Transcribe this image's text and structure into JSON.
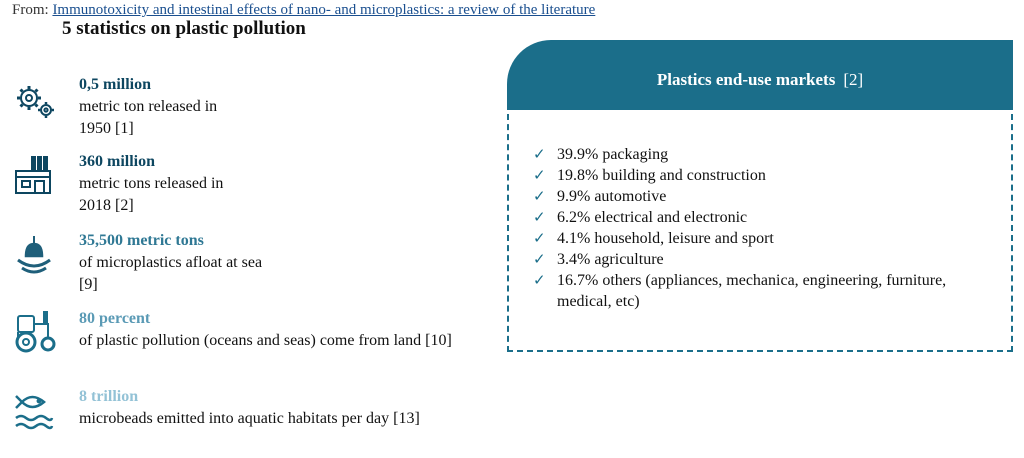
{
  "header": {
    "from_label": "From:",
    "article_link": "Immunotoxicity and intestinal effects of nano- and microplastics: a review of the literature"
  },
  "title": "5 statistics on plastic pollution",
  "stats": [
    {
      "icon": "gears-icon",
      "value": "0,5 million",
      "desc_lines": [
        "metric ton released in",
        "1950 [1]"
      ],
      "color": "#0d4660"
    },
    {
      "icon": "factory-icon",
      "value": "360 million",
      "desc_lines": [
        "metric tons released in",
        "2018 [2]"
      ],
      "color": "#0d4660"
    },
    {
      "icon": "buoy-icon",
      "value": "35,500 metric tons",
      "desc_lines": [
        "of microplastics afloat at sea",
        "[9]"
      ],
      "color": "#2f7894"
    },
    {
      "icon": "tractor-icon",
      "value": "80 percent",
      "desc_lines": [
        "of plastic pollution (oceans and seas) come from land  [10]"
      ],
      "color": "#5a9ab5"
    },
    {
      "icon": "fish-waves-icon",
      "value": "8 trillion",
      "desc_lines": [
        "microbeads emitted into aquatic habitats per day  [13]"
      ],
      "color": "#93c2d6"
    }
  ],
  "panel": {
    "title": "Plastics end-use markets",
    "ref": "[2]",
    "items": [
      "39.9% packaging",
      "19.8% building and construction",
      "9.9% automotive",
      "6.2% electrical and electronic",
      "4.1% household, leisure and sport",
      "3.4% agriculture",
      "16.7% others (appliances, mechanica, engineering, furniture, medical, etc)"
    ],
    "check_glyph": "✓",
    "accent_color": "#1b6e8a"
  }
}
